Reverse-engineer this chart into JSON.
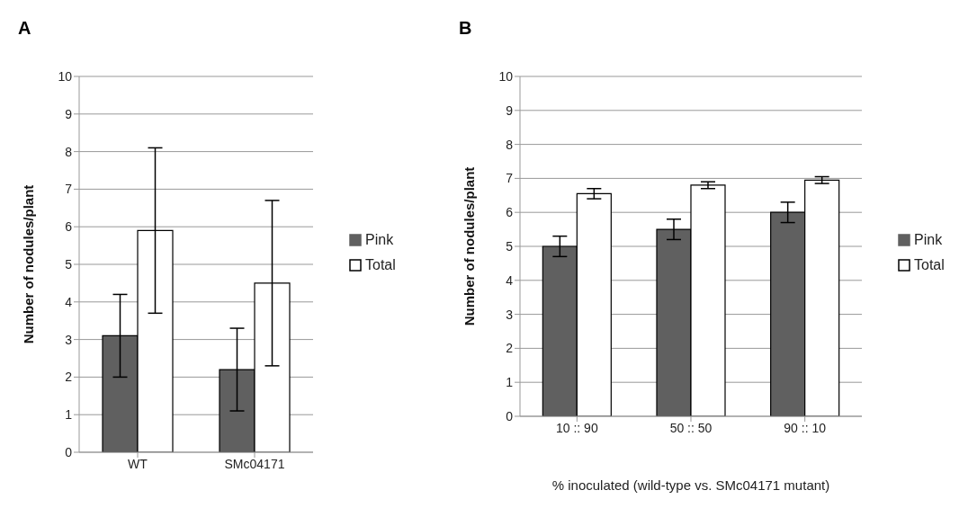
{
  "chart_data": [
    {
      "type": "bar",
      "title": "A",
      "ylabel": "Number of nodules/plant",
      "categories": [
        "WT",
        "SMc04171"
      ],
      "series": [
        {
          "name": "Pink",
          "color": "#606060",
          "values": [
            3.1,
            2.2
          ],
          "errors": [
            1.1,
            1.1
          ]
        },
        {
          "name": "Total",
          "color": "#ffffff",
          "values": [
            5.9,
            4.5
          ],
          "errors": [
            2.2,
            2.2
          ]
        }
      ],
      "ylim": [
        0,
        10
      ],
      "yticks": [
        0,
        1,
        2,
        3,
        4,
        5,
        6,
        7,
        8,
        9,
        10
      ],
      "grid": "y",
      "legend": "right"
    },
    {
      "type": "bar",
      "title": "B",
      "ylabel": "Number of nodules/plant",
      "xlabel": "% inoculated (wild-type vs. SMc04171 mutant)",
      "categories": [
        "10 :: 90",
        "50 :: 50",
        "90 :: 10"
      ],
      "series": [
        {
          "name": "Pink",
          "color": "#606060",
          "values": [
            5.0,
            5.5,
            6.0
          ],
          "errors": [
            0.3,
            0.3,
            0.3
          ]
        },
        {
          "name": "Total",
          "color": "#ffffff",
          "values": [
            6.55,
            6.8,
            6.95
          ],
          "errors": [
            0.15,
            0.1,
            0.1
          ]
        }
      ],
      "ylim": [
        0,
        10
      ],
      "yticks": [
        0,
        1,
        2,
        3,
        4,
        5,
        6,
        7,
        8,
        9,
        10
      ],
      "grid": "y",
      "legend": "right"
    }
  ]
}
